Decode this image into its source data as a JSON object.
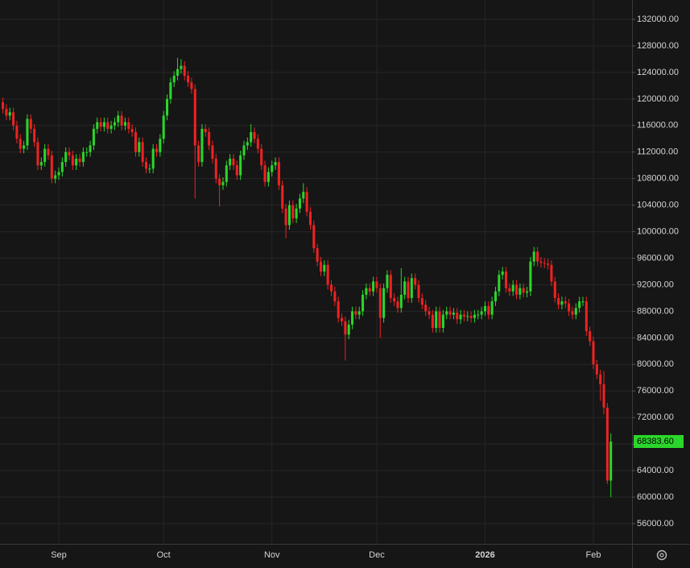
{
  "chart_data": {
    "type": "candlestick",
    "up_color": "#2bd62b",
    "down_color": "#ee2222",
    "grid": true,
    "xlim": [
      -0.82,
      180.06
    ],
    "xticks": [
      {
        "value": 16,
        "label": "Sep"
      },
      {
        "value": 46,
        "label": "Oct"
      },
      {
        "value": 77,
        "label": "Nov"
      },
      {
        "value": 107,
        "label": "Dec"
      },
      {
        "value": 138,
        "label": "2026"
      },
      {
        "value": 169,
        "label": "Feb"
      }
    ],
    "ylim": [
      52965,
      134914
    ],
    "yticks": [
      {
        "value": 56000,
        "label": "56000.00"
      },
      {
        "value": 60000,
        "label": "60000.00"
      },
      {
        "value": 64000,
        "label": "64000.00"
      },
      {
        "value": 68000,
        "label": "68000.00"
      },
      {
        "value": 72000,
        "label": "72000.00"
      },
      {
        "value": 76000,
        "label": "76000.00"
      },
      {
        "value": 80000,
        "label": "80000.00"
      },
      {
        "value": 84000,
        "label": "84000.00"
      },
      {
        "value": 88000,
        "label": "88000.00"
      },
      {
        "value": 92000,
        "label": "92000.00"
      },
      {
        "value": 96000,
        "label": "96000.00"
      },
      {
        "value": 100000,
        "label": "100000.00"
      },
      {
        "value": 104000,
        "label": "104000.00"
      },
      {
        "value": 108000,
        "label": "108000.00"
      },
      {
        "value": 112000,
        "label": "112000.00"
      },
      {
        "value": 116000,
        "label": "116000.00"
      },
      {
        "value": 120000,
        "label": "120000.00"
      },
      {
        "value": 124000,
        "label": "124000.00"
      },
      {
        "value": 128000,
        "label": "128000.00"
      },
      {
        "value": 132000,
        "label": "132000.00"
      }
    ],
    "last_price": {
      "value": 68383.6,
      "label": "68383.60"
    },
    "open": [
      119500,
      118500,
      117500,
      118000,
      116000,
      114000,
      112500,
      113000,
      117000,
      115500,
      113500,
      110000,
      110500,
      112500,
      111500,
      108000,
      108500,
      109000,
      110500,
      112000,
      111500,
      110000,
      111000,
      110500,
      112000,
      112000,
      113000,
      115500,
      116500,
      115800,
      116500,
      115500,
      116000,
      116500,
      117500,
      116000,
      116500,
      115500,
      115000,
      112000,
      113500,
      110500,
      109500,
      109500,
      112500,
      112000,
      114000,
      117500,
      120000,
      122500,
      123500,
      124500,
      125000,
      123500,
      122500,
      121500,
      113000,
      110500,
      115500,
      115000,
      113000,
      111000,
      108000,
      107000,
      107500,
      110000,
      111000,
      110000,
      108500,
      111500,
      113000,
      113500,
      115000,
      114000,
      112500,
      110000,
      107500,
      109000,
      110000,
      110500,
      107000,
      103500,
      101000,
      104000,
      102000,
      103500,
      105000,
      106000,
      103000,
      101000,
      97500,
      95500,
      94000,
      95000,
      92000,
      91000,
      89500,
      87000,
      86500,
      84500,
      86000,
      88000,
      87500,
      88000,
      90500,
      91500,
      91000,
      92500,
      91500,
      87000,
      91500,
      93500,
      90000,
      89500,
      88500,
      90500,
      92500,
      90000,
      93000,
      92000,
      90000,
      89000,
      88000,
      87500,
      85500,
      88000,
      85500,
      87500,
      88000,
      87500,
      87800,
      86800,
      87500,
      87200,
      87300,
      87000,
      87500,
      87500,
      88000,
      88800,
      87500,
      89500,
      91000,
      93500,
      94000,
      91500,
      91000,
      92000,
      90500,
      91500,
      90800,
      91000,
      95500,
      97000,
      95500,
      95300,
      95200,
      95000,
      92500,
      90000,
      89000,
      89500,
      89200,
      88000,
      87500,
      88500,
      89500,
      89500,
      85000,
      83500,
      80000,
      78500,
      77000,
      73500,
      62500
    ],
    "high": [
      120200,
      119200,
      118700,
      118700,
      116700,
      114700,
      113700,
      117700,
      117700,
      116200,
      114200,
      111200,
      113200,
      113200,
      112200,
      109200,
      109700,
      111200,
      112700,
      112700,
      112200,
      111700,
      111700,
      112700,
      112700,
      113700,
      116200,
      117200,
      117200,
      117200,
      117200,
      116700,
      117200,
      118200,
      118200,
      117200,
      117200,
      116200,
      115700,
      114200,
      114200,
      111200,
      110200,
      113200,
      113200,
      114700,
      118200,
      120700,
      123200,
      124200,
      126200,
      126000,
      125700,
      124200,
      123200,
      122200,
      113700,
      116200,
      116200,
      115700,
      113700,
      111700,
      108700,
      108200,
      110700,
      111700,
      111700,
      110700,
      112200,
      113700,
      114200,
      116200,
      115700,
      114700,
      113200,
      110700,
      109700,
      110700,
      111200,
      111200,
      107700,
      104200,
      104700,
      104700,
      104200,
      105700,
      107300,
      106700,
      103700,
      101700,
      98200,
      96200,
      95700,
      95700,
      92700,
      91700,
      90200,
      87700,
      87200,
      86700,
      88700,
      88700,
      88700,
      91200,
      92200,
      92200,
      93200,
      93200,
      92200,
      92200,
      94200,
      94200,
      90700,
      90200,
      94500,
      93200,
      93200,
      93700,
      93700,
      92700,
      90700,
      89700,
      88700,
      88200,
      88700,
      88700,
      88200,
      88700,
      88700,
      88500,
      88500,
      88200,
      88200,
      88000,
      88000,
      88200,
      88200,
      88700,
      89500,
      89500,
      90200,
      91700,
      94200,
      94700,
      94700,
      92200,
      92700,
      92700,
      92200,
      92200,
      91700,
      96200,
      97700,
      97700,
      96200,
      96000,
      95900,
      95700,
      93200,
      90700,
      90200,
      90200,
      89900,
      88700,
      89200,
      90200,
      90200,
      90200,
      85700,
      84200,
      80700,
      79200,
      79000,
      74200,
      69600
    ],
    "low": [
      117800,
      116800,
      116800,
      115300,
      113300,
      111800,
      111800,
      112300,
      114800,
      112800,
      109300,
      109300,
      109800,
      110800,
      107300,
      107300,
      107800,
      108300,
      109800,
      110800,
      109300,
      109300,
      109800,
      109800,
      111300,
      111300,
      112300,
      114800,
      115100,
      115100,
      114800,
      114800,
      115300,
      115800,
      115300,
      115300,
      114800,
      114300,
      111300,
      111300,
      109800,
      108800,
      108800,
      108800,
      111300,
      111300,
      113300,
      116800,
      119300,
      121800,
      122800,
      123800,
      122800,
      121800,
      120800,
      105000,
      109800,
      109800,
      114300,
      112300,
      110300,
      107300,
      103800,
      106300,
      106800,
      109300,
      109300,
      107800,
      107800,
      110800,
      112300,
      112800,
      113300,
      111800,
      109300,
      106800,
      106800,
      108300,
      109300,
      106300,
      102800,
      99000,
      100300,
      101300,
      101300,
      102800,
      104300,
      102300,
      100300,
      96800,
      94800,
      93300,
      93300,
      91300,
      90300,
      88800,
      86300,
      85800,
      80600,
      83800,
      85300,
      86800,
      86800,
      87300,
      89800,
      90300,
      90300,
      90800,
      84000,
      86300,
      90800,
      89300,
      88800,
      87800,
      87800,
      89800,
      89300,
      89300,
      91300,
      89300,
      88300,
      87300,
      86800,
      84800,
      84800,
      84800,
      84800,
      86800,
      86800,
      86800,
      86100,
      86100,
      86500,
      86500,
      86300,
      86300,
      86800,
      86800,
      87300,
      86800,
      86800,
      88800,
      90300,
      92800,
      90800,
      90300,
      90300,
      89800,
      89800,
      90100,
      90100,
      90300,
      94800,
      94800,
      94600,
      94500,
      94300,
      91800,
      89300,
      88300,
      88300,
      88500,
      87300,
      86800,
      86800,
      87800,
      88800,
      84300,
      82800,
      79300,
      77800,
      74500,
      72500,
      62000,
      60000
    ],
    "close": [
      118500,
      117500,
      118000,
      116000,
      114000,
      112500,
      113000,
      117000,
      115500,
      113500,
      110000,
      110500,
      112500,
      111500,
      108000,
      108500,
      109000,
      110500,
      112000,
      111500,
      110000,
      111000,
      110500,
      112000,
      112000,
      113000,
      115500,
      116500,
      115800,
      116500,
      115500,
      116000,
      116500,
      117500,
      116000,
      116500,
      115500,
      115000,
      112000,
      113500,
      110500,
      109500,
      109500,
      112500,
      112000,
      114000,
      117500,
      120000,
      122500,
      123500,
      124500,
      125000,
      123500,
      122500,
      121500,
      113000,
      110500,
      115500,
      115000,
      113000,
      111000,
      108000,
      107000,
      107500,
      110000,
      111000,
      110000,
      108500,
      111500,
      113000,
      113500,
      115000,
      114000,
      112500,
      110000,
      107500,
      109000,
      110000,
      110500,
      107000,
      103500,
      101000,
      104000,
      102000,
      103500,
      105000,
      106000,
      103000,
      101000,
      97500,
      95500,
      94000,
      95000,
      92000,
      91000,
      89500,
      87000,
      86500,
      84500,
      86000,
      88000,
      87500,
      88000,
      90500,
      91500,
      91000,
      92500,
      91500,
      87000,
      91500,
      93500,
      90000,
      89500,
      88500,
      90500,
      92500,
      90000,
      93000,
      92000,
      90000,
      89000,
      88000,
      87500,
      85500,
      88000,
      85500,
      87500,
      88000,
      87500,
      87800,
      86800,
      87500,
      87200,
      87300,
      87000,
      87500,
      87500,
      88000,
      88800,
      87500,
      89500,
      91000,
      93500,
      94000,
      91500,
      91000,
      92000,
      90500,
      91500,
      90800,
      91000,
      95500,
      97000,
      95500,
      95300,
      95200,
      95000,
      92500,
      90000,
      89000,
      89500,
      89200,
      88000,
      87500,
      88500,
      89500,
      89500,
      85000,
      83500,
      80000,
      78500,
      77000,
      73500,
      62500,
      68383.6
    ]
  }
}
